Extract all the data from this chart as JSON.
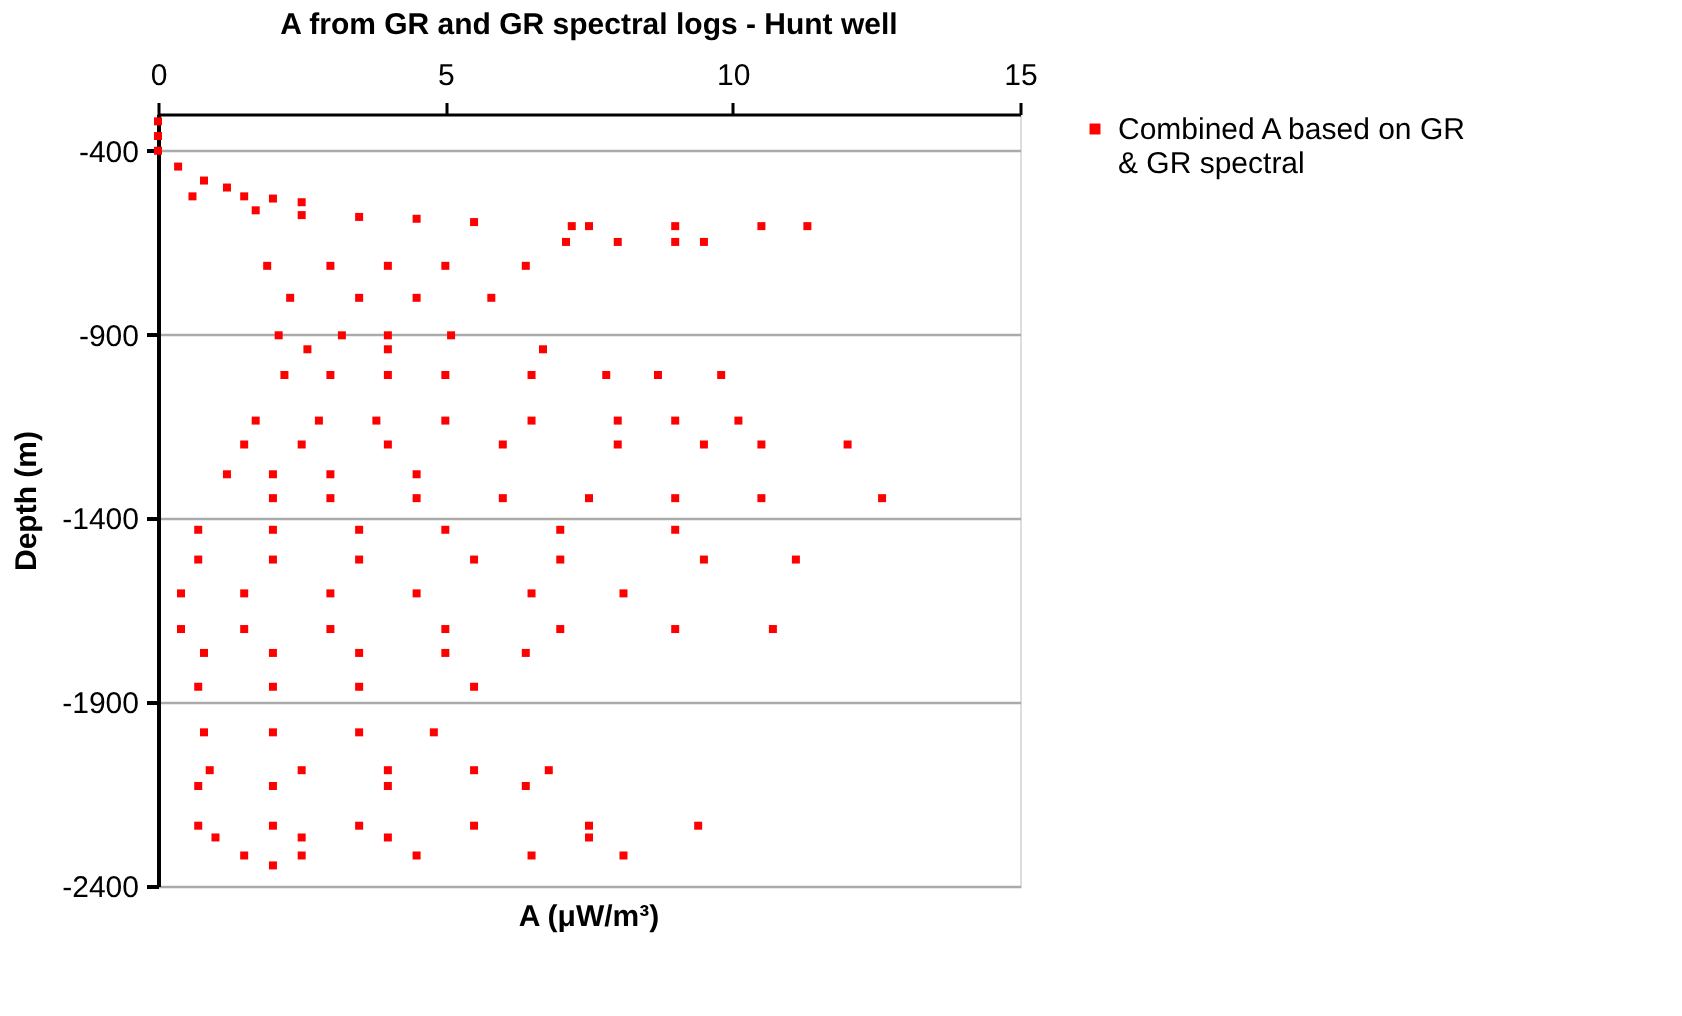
{
  "chart_data": {
    "type": "scatter",
    "title": "A from GR and GR spectral logs - Hunt well",
    "xlabel": "A (μW/m³)",
    "ylabel": "Depth (m)",
    "xlim": [
      0,
      15
    ],
    "xticks": [
      0,
      5,
      10,
      15
    ],
    "ylim": [
      -2400,
      -300
    ],
    "yticks": [
      -400,
      -900,
      -1400,
      -1900,
      -2400
    ],
    "grid": "y",
    "legend": "right",
    "marker": "square",
    "series": [
      {
        "name": "Combined A based on GR & GR spectral",
        "color": "#ff0000",
        "x": [
          0,
          0,
          0,
          0.35,
          0.8,
          1.2,
          0.6,
          1.5,
          2.0,
          2.5,
          1.7,
          2.5,
          3.5,
          4.5,
          5.5,
          7.2,
          7.5,
          9.0,
          10.5,
          11.3,
          7.1,
          8.0,
          9.0,
          9.5,
          1.9,
          3.0,
          4.0,
          5.0,
          6.4,
          2.3,
          3.5,
          4.5,
          5.8,
          2.1,
          3.2,
          4.0,
          5.1,
          2.6,
          4.0,
          6.7,
          2.2,
          3.0,
          4.0,
          5.0,
          6.5,
          7.8,
          8.7,
          9.8,
          1.7,
          2.8,
          3.8,
          5.0,
          6.5,
          8.0,
          9.0,
          10.1,
          1.5,
          2.5,
          4.0,
          6.0,
          8.0,
          9.5,
          10.5,
          12.0,
          1.2,
          2.0,
          3.0,
          4.5,
          2.0,
          3.0,
          4.5,
          6.0,
          7.5,
          9.0,
          10.5,
          12.6,
          0.7,
          2.0,
          3.5,
          5.0,
          7.0,
          9.0,
          0.7,
          2.0,
          3.5,
          5.5,
          7.0,
          9.5,
          11.1,
          0.4,
          1.5,
          3.0,
          4.5,
          6.5,
          8.1,
          0.4,
          1.5,
          3.0,
          5.0,
          7.0,
          9.0,
          10.7,
          0.8,
          2.0,
          3.5,
          5.0,
          6.4,
          0.7,
          2.0,
          3.5,
          5.5,
          0.8,
          2.0,
          3.5,
          4.8,
          0.9,
          2.5,
          4.0,
          5.5,
          6.8,
          0.7,
          2.0,
          4.0,
          6.4,
          0.7,
          2.0,
          3.5,
          5.5,
          7.5,
          9.4,
          1.0,
          2.5,
          4.0,
          7.5,
          1.5,
          2.5,
          4.5,
          6.5,
          8.1,
          2.0
        ],
        "values": [
          -320,
          -360,
          -400,
          -443,
          -481,
          -500,
          -524,
          -524,
          -530,
          -540,
          -562,
          -575,
          -580,
          -585,
          -594,
          -605,
          -605,
          -605,
          -605,
          -605,
          -648,
          -648,
          -648,
          -648,
          -713,
          -713,
          -713,
          -713,
          -713,
          -800,
          -800,
          -800,
          -800,
          -902,
          -902,
          -902,
          -902,
          -940,
          -940,
          -940,
          -1010,
          -1010,
          -1010,
          -1010,
          -1010,
          -1010,
          -1010,
          -1010,
          -1134,
          -1134,
          -1134,
          -1134,
          -1134,
          -1134,
          -1134,
          -1134,
          -1199,
          -1199,
          -1199,
          -1199,
          -1199,
          -1199,
          -1199,
          -1199,
          -1280,
          -1280,
          -1280,
          -1280,
          -1345,
          -1345,
          -1345,
          -1345,
          -1345,
          -1345,
          -1345,
          -1345,
          -1431,
          -1431,
          -1431,
          -1431,
          -1431,
          -1431,
          -1512,
          -1512,
          -1512,
          -1512,
          -1512,
          -1512,
          -1512,
          -1604,
          -1604,
          -1604,
          -1604,
          -1604,
          -1604,
          -1701,
          -1701,
          -1701,
          -1701,
          -1701,
          -1701,
          -1701,
          -1766,
          -1766,
          -1766,
          -1766,
          -1766,
          -1858,
          -1858,
          -1858,
          -1858,
          -1982,
          -1982,
          -1982,
          -1982,
          -2085,
          -2085,
          -2085,
          -2085,
          -2085,
          -2128,
          -2128,
          -2128,
          -2128,
          -2236,
          -2236,
          -2236,
          -2236,
          -2236,
          -2236,
          -2268,
          -2268,
          -2268,
          -2268,
          -2317,
          -2317,
          -2317,
          -2317,
          -2317,
          -2344
        ]
      }
    ]
  }
}
